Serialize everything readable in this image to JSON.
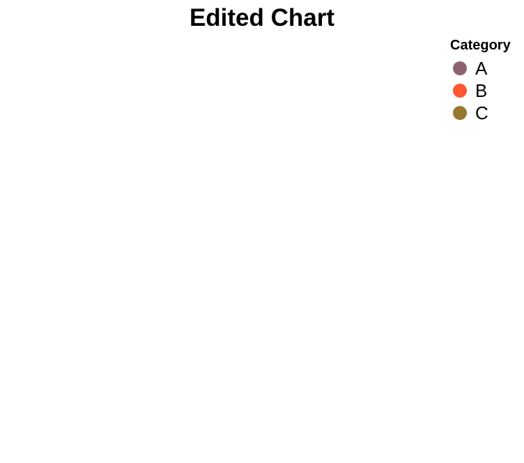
{
  "chart_data": {
    "type": "scatter",
    "title": "Edited Chart",
    "legend": {
      "title": "Category",
      "placement": "top-right",
      "entries": [
        {
          "label": "A",
          "color": "#8E6272"
        },
        {
          "label": "B",
          "color": "#FF5733"
        },
        {
          "label": "C",
          "color": "#967830"
        }
      ]
    },
    "series": [
      {
        "name": "A",
        "color": "#8E6272",
        "points": []
      },
      {
        "name": "B",
        "color": "#FF5733",
        "points": []
      },
      {
        "name": "C",
        "color": "#967830",
        "points": []
      }
    ],
    "grid": false
  }
}
